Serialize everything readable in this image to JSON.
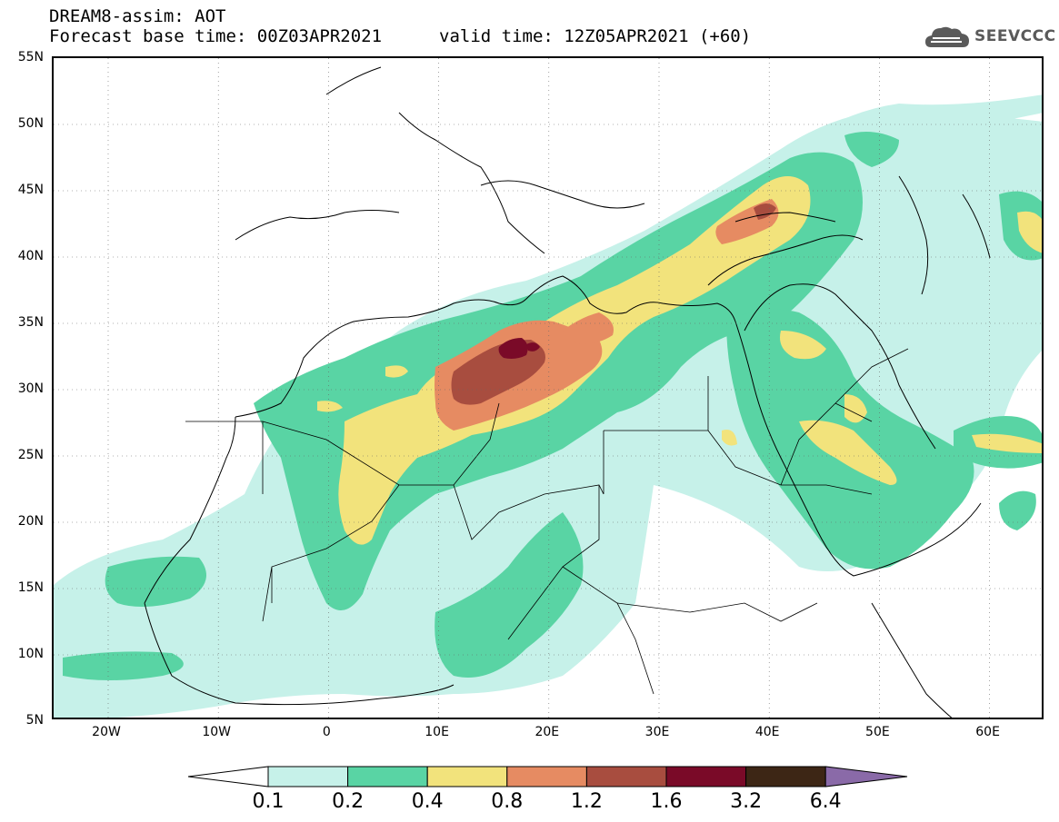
{
  "header": {
    "line1": "DREAM8-assim: AOT",
    "line2": "Forecast base time: 00Z03APR2021",
    "valid": "valid time: 12Z05APR2021 (+60)",
    "logo_text": "SEEVCCC",
    "logo_icon": "cloud-icon"
  },
  "axes": {
    "lat_labels": [
      "55N",
      "50N",
      "45N",
      "40N",
      "35N",
      "30N",
      "25N",
      "20N",
      "15N",
      "10N",
      "5N"
    ],
    "lon_labels": [
      "20W",
      "10W",
      "0",
      "10E",
      "20E",
      "30E",
      "40E",
      "50E",
      "60E"
    ]
  },
  "colorbar": {
    "labels": [
      "0.1",
      "0.2",
      "0.4",
      "0.8",
      "1.2",
      "1.6",
      "3.2",
      "6.4"
    ],
    "colors": [
      "#c6f1e9",
      "#59d4a4",
      "#f2e37c",
      "#e68b62",
      "#a84d3f",
      "#7a0a28",
      "#3d2615",
      "#8a6aa8"
    ]
  },
  "palette": {
    "l1": "#c6f1e9",
    "l2": "#59d4a4",
    "l3": "#f2e37c",
    "l4": "#e68b62",
    "l5": "#a84d3f",
    "l6": "#7a0a28"
  }
}
